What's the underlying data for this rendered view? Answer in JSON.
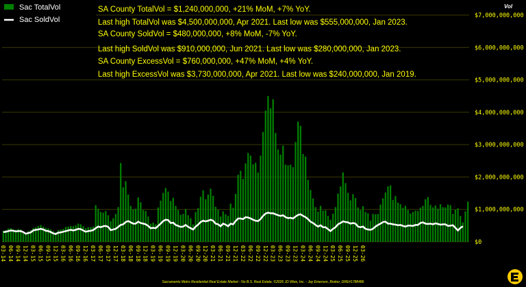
{
  "chart_data": {
    "type": "bar",
    "y_unit_label": "Vol",
    "ylim": [
      0,
      7000000000
    ],
    "y_ticks": [
      "$0",
      "$1,000,000,000",
      "$2,000,000,000",
      "$3,000,000,000",
      "$4,000,000,000",
      "$5,000,000,000",
      "$6,000,000,000",
      "$7,000,000,000"
    ],
    "y_tick_values": [
      0,
      1000000000,
      2000000000,
      3000000000,
      4000000000,
      5000000000,
      6000000000,
      7000000000
    ],
    "grid": true,
    "legend_position": "top-left",
    "colors": {
      "bar": "#008000",
      "line": "#ffffff",
      "text": "#ffff00",
      "grid": "#3a3a00",
      "background": "#000000"
    },
    "x_tick_labels": [
      "03-14",
      "06-14",
      "09-14",
      "12-14",
      "03-15",
      "06-15",
      "09-15",
      "12-15",
      "03-16",
      "06-16",
      "09-16",
      "12-16",
      "03-17",
      "06-17",
      "09-17",
      "12-17",
      "03-18",
      "06-18",
      "09-18",
      "12-18",
      "03-19",
      "06-19",
      "09-19",
      "12-19",
      "03-20",
      "06-20",
      "09-20",
      "12-20",
      "03-21",
      "06-21",
      "09-21",
      "12-21",
      "03-22",
      "06-22",
      "09-22",
      "12-22",
      "03-23",
      "06-23",
      "09-23",
      "12-23",
      "03-24",
      "06-24",
      "09-24",
      "12-24",
      "03-25",
      "06-25",
      "09-25",
      "12-25",
      "03-26"
    ],
    "series": [
      {
        "name": "Sac TotalVol",
        "kind": "bar",
        "values": [
          340,
          360,
          410,
          420,
          390,
          370,
          400,
          380,
          300,
          260,
          330,
          360,
          430,
          450,
          490,
          520,
          470,
          430,
          420,
          380,
          330,
          300,
          360,
          380,
          400,
          460,
          470,
          490,
          480,
          510,
          560,
          540,
          480,
          420,
          450,
          450,
          470,
          1130,
          1020,
          920,
          900,
          950,
          820,
          640,
          730,
          860,
          1070,
          2430,
          1680,
          1870,
          1460,
          1110,
          1000,
          1020,
          1370,
          1220,
          980,
          950,
          780,
          560,
          590,
          540,
          1060,
          1270,
          1510,
          1660,
          1550,
          1260,
          1360,
          1110,
          980,
          830,
          860,
          1010,
          820,
          730,
          540,
          920,
          1040,
          1390,
          1590,
          1310,
          1460,
          1640,
          1420,
          1080,
          990,
          780,
          940,
          850,
          800,
          1180,
          1050,
          1480,
          2070,
          2190,
          1940,
          2420,
          2740,
          2660,
          2390,
          2440,
          2140,
          2660,
          3390,
          4050,
          4500,
          4120,
          4400,
          3360,
          2850,
          2690,
          2970,
          2380,
          2360,
          2380,
          2300,
          3080,
          3710,
          3580,
          2710,
          2630,
          1910,
          1600,
          1340,
          1070,
          930,
          1110,
          960,
          970,
          800,
          680,
          870,
          1070,
          1490,
          1710,
          2140,
          1810,
          1510,
          1280,
          1470,
          1350,
          1060,
          980,
          1100,
          920,
          880,
          650,
          860,
          850,
          860,
          1150,
          1340,
          1520,
          1710,
          1740,
          1290,
          1410,
          1210,
          1160,
          1050,
          1110,
          980,
          870,
          920,
          960,
          950,
          1050,
          1110,
          1310,
          1380,
          1140,
          1060,
          1120,
          1020,
          1160,
          1070,
          1060,
          1150,
          1130,
          860,
          990,
          1030,
          800,
          600,
          940,
          1240
        ],
        "unit": "millions USD"
      },
      {
        "name": "Sac SoldVol",
        "kind": "line",
        "values": [
          300,
          310,
          330,
          350,
          340,
          320,
          330,
          330,
          300,
          250,
          270,
          290,
          350,
          370,
          380,
          400,
          380,
          340,
          330,
          300,
          260,
          240,
          280,
          290,
          310,
          330,
          350,
          370,
          350,
          370,
          400,
          390,
          350,
          310,
          330,
          340,
          360,
          420,
          470,
          450,
          480,
          490,
          460,
          360,
          380,
          400,
          460,
          520,
          540,
          610,
          640,
          600,
          560,
          560,
          620,
          580,
          560,
          540,
          490,
          420,
          430,
          420,
          490,
          560,
          640,
          680,
          670,
          580,
          590,
          520,
          490,
          460,
          470,
          520,
          460,
          420,
          380,
          470,
          530,
          610,
          650,
          630,
          650,
          680,
          650,
          560,
          540,
          480,
          560,
          530,
          480,
          560,
          540,
          640,
          720,
          720,
          700,
          760,
          750,
          720,
          680,
          650,
          640,
          700,
          800,
          870,
          900,
          880,
          880,
          850,
          820,
          800,
          820,
          760,
          730,
          740,
          720,
          780,
          830,
          850,
          800,
          760,
          700,
          620,
          580,
          520,
          470,
          510,
          450,
          450,
          390,
          330,
          400,
          450,
          540,
          580,
          630,
          610,
          600,
          560,
          580,
          560,
          470,
          450,
          470,
          400,
          380,
          370,
          400,
          470,
          520,
          560,
          610,
          620,
          560,
          560,
          540,
          530,
          510,
          520,
          490,
          470,
          500,
          500,
          490,
          520,
          520,
          580,
          600,
          560,
          550,
          560,
          540,
          570,
          550,
          530,
          540,
          540,
          490,
          500,
          510,
          430,
          350,
          430,
          480
        ],
        "unit": "millions USD"
      }
    ],
    "annotations": [
      "SA County TotalVol = $1,240,000,000, +21% MoM, +7% YoY.",
      "Last high TotalVol was $4,500,000,000, Apr 2021. Last low was $555,000,000, Jan 2023.",
      "SA County SoldVol = $480,000,000, +8% MoM, -7% YoY.",
      "Last high SoldVol was $910,000,000, Jun 2021. Last low was $280,000,000, Jan 2023.",
      "SA County ExcessVol = $760,000,000, +47% MoM, +4% YoY.",
      "Last high ExcessVol was $3,730,000,000, Apr 2021. Last low was $240,000,000, Jan 2019."
    ],
    "footer": "Sacramento Metro Residential Real Estate Market - No B.S. Real Estate, ©2026 JD Wize, Inc. - Jay Emerson, Broker, DRE#1788486"
  }
}
